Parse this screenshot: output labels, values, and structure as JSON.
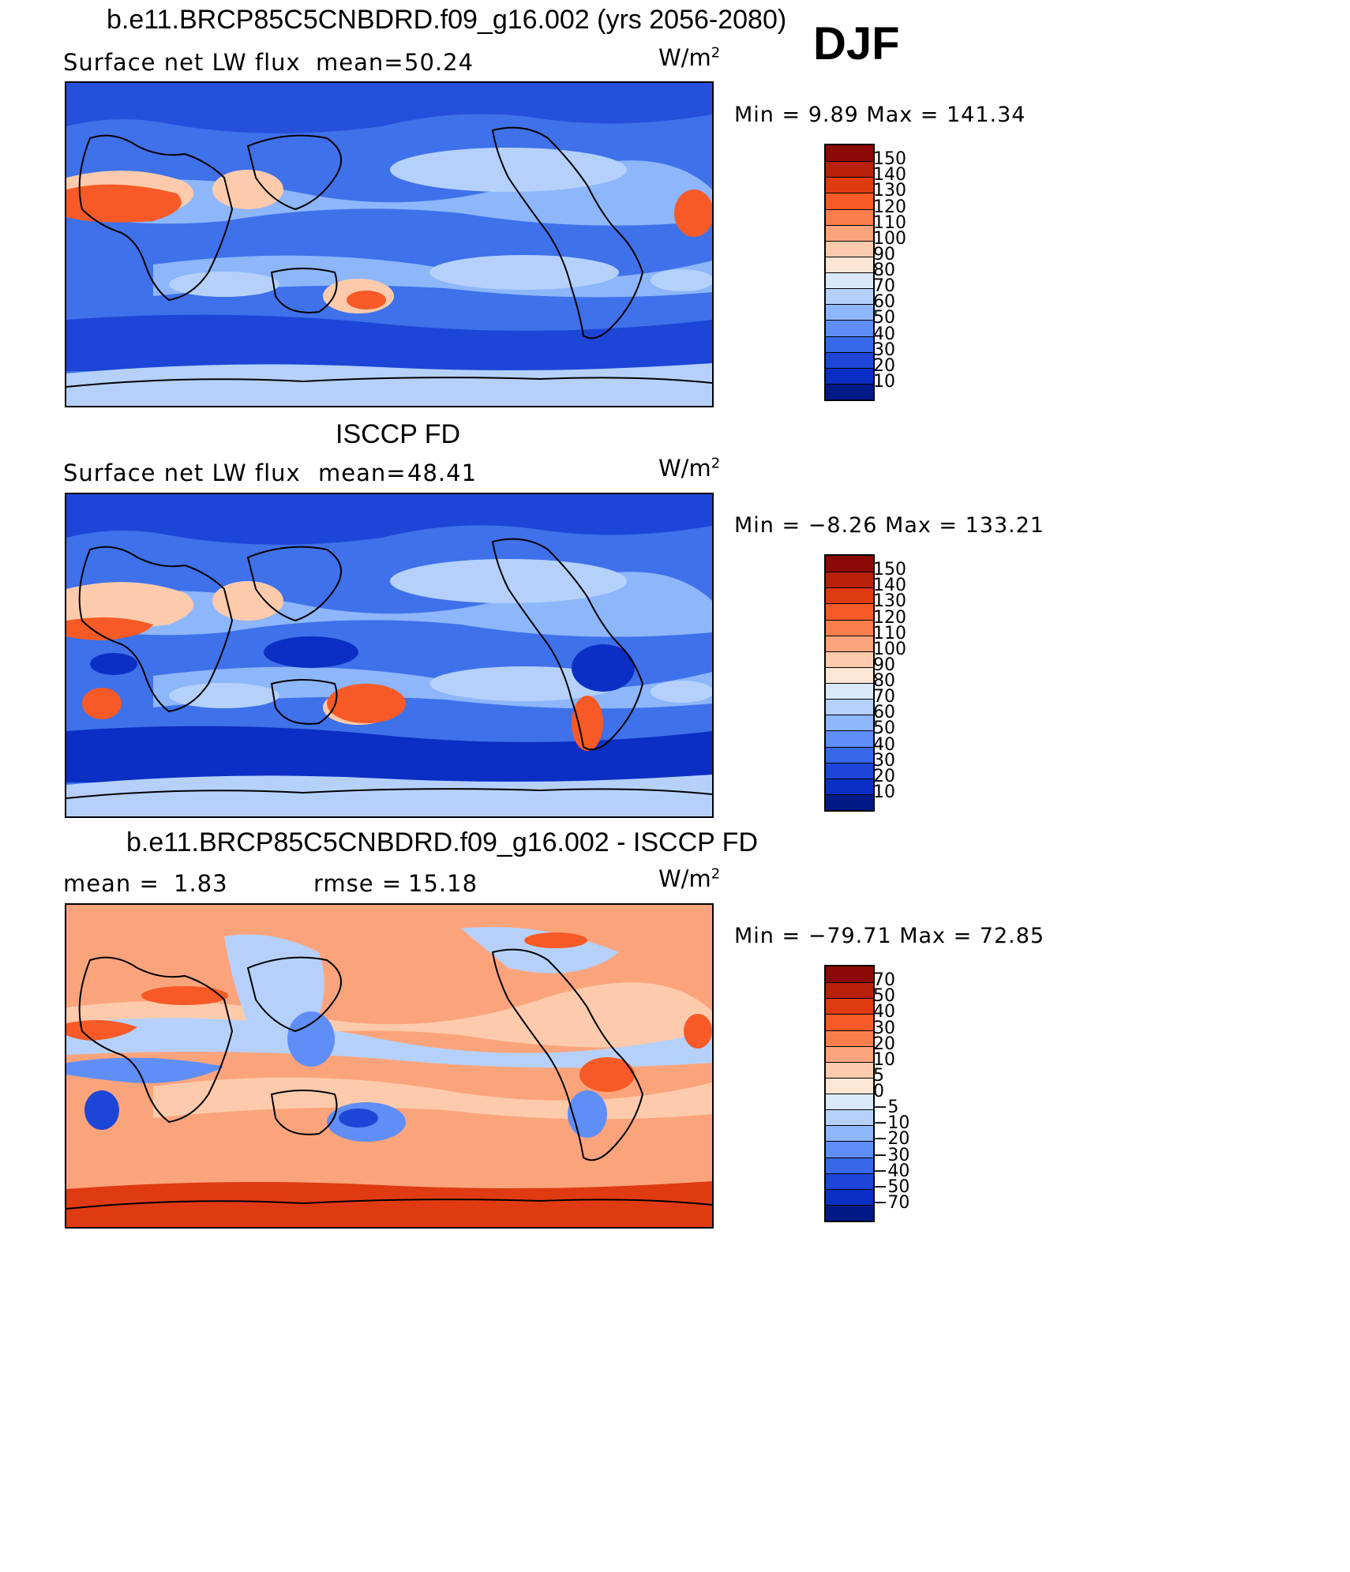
{
  "season": "DJF",
  "panels": [
    {
      "title": "b.e11.BRCP85C5CNBDRD.f09_g16.002 (yrs 2056-2080)",
      "left_label": "Surface net LW flux",
      "stat_label": "mean=",
      "stat_value": "50.24",
      "units": "W/m",
      "units_sup": "2",
      "minmax": "Min =    9.89  Max  =  141.34",
      "scheme": "warm",
      "colorbar": {
        "labels": [
          "150",
          "140",
          "130",
          "120",
          "110",
          "100",
          "90",
          "80",
          "70",
          "60",
          "50",
          "40",
          "30",
          "20",
          "10"
        ],
        "colors": [
          "#8b0a05",
          "#b8200a",
          "#e03a12",
          "#f75a27",
          "#fa7e4c",
          "#fba47c",
          "#fdcbac",
          "#fde6d4",
          "#d9e9fb",
          "#b5d1fb",
          "#8db6fb",
          "#5f8ef6",
          "#3768e9",
          "#1d46d8",
          "#0b2fc4",
          "#021a88"
        ]
      },
      "layers": [
        {
          "color": "#3f71ea",
          "shapes": "bg"
        },
        {
          "color": "#1d46d8",
          "shapes": "south_band"
        },
        {
          "color": "#8db6fb",
          "shapes": "subtrop"
        },
        {
          "color": "#b5d1fb",
          "shapes": "pacific_pale"
        },
        {
          "color": "#fdcbac",
          "shapes": "desert_light"
        },
        {
          "color": "#f75a27",
          "shapes": "desert"
        },
        {
          "color": "#2450dc",
          "shapes": "north_band"
        },
        {
          "color": "#b5d1fb",
          "shapes": "antarctic"
        }
      ]
    },
    {
      "title": "ISCCP FD",
      "left_label": "Surface net LW flux",
      "stat_label": "mean=",
      "stat_value": "48.41",
      "units": "W/m",
      "units_sup": "2",
      "minmax": "Min =   −8.26  Max  =  133.21",
      "scheme": "warm",
      "colorbar": {
        "labels": [
          "150",
          "140",
          "130",
          "120",
          "110",
          "100",
          "90",
          "80",
          "70",
          "60",
          "50",
          "40",
          "30",
          "20",
          "10"
        ],
        "colors": [
          "#8b0a05",
          "#b8200a",
          "#e03a12",
          "#f75a27",
          "#fa7e4c",
          "#fba47c",
          "#fdcbac",
          "#fde6d4",
          "#d9e9fb",
          "#b5d1fb",
          "#8db6fb",
          "#5f8ef6",
          "#3768e9",
          "#1d46d8",
          "#0b2fc4",
          "#021a88"
        ]
      },
      "layers": [
        {
          "color": "#3f71ea",
          "shapes": "bg"
        },
        {
          "color": "#0b2fc4",
          "shapes": "south_band"
        },
        {
          "color": "#8db6fb",
          "shapes": "subtrop"
        },
        {
          "color": "#b5d1fb",
          "shapes": "pacific_pale"
        },
        {
          "color": "#fdcbac",
          "shapes": "desert_light"
        },
        {
          "color": "#f75a27",
          "shapes": "desert2"
        },
        {
          "color": "#0b2fc4",
          "shapes": "tropic_dark"
        },
        {
          "color": "#1d46d8",
          "shapes": "north_band"
        },
        {
          "color": "#b5d1fb",
          "shapes": "antarctic"
        }
      ]
    },
    {
      "title": "b.e11.BRCP85C5CNBDRD.f09_g16.002 - ISCCP FD",
      "left_label": "mean =",
      "left_value": "1.83",
      "stat_label": "rmse =",
      "stat_value": "15.18",
      "units": "W/m",
      "units_sup": "2",
      "minmax": "Min = −79.71  Max  =   72.85",
      "scheme": "diff",
      "colorbar": {
        "labels": [
          "70",
          "50",
          "40",
          "30",
          "20",
          "10",
          "5",
          "0",
          "−5",
          "−10",
          "−20",
          "−30",
          "−40",
          "−50",
          "−70"
        ],
        "colors": [
          "#8b0a05",
          "#b8200a",
          "#e03a12",
          "#f75a27",
          "#fa7e4c",
          "#fba47c",
          "#fdcbac",
          "#fde6d4",
          "#d9e9fb",
          "#b5d1fb",
          "#8db6fb",
          "#5f8ef6",
          "#3768e9",
          "#1d46d8",
          "#0b2fc4",
          "#021a88"
        ]
      },
      "layers": [
        {
          "color": "#fba47c",
          "shapes": "bg"
        },
        {
          "color": "#fdcbac",
          "shapes": "subtrop"
        },
        {
          "color": "#b5d1fb",
          "shapes": "diff_blue_light"
        },
        {
          "color": "#5f8ef6",
          "shapes": "diff_blue"
        },
        {
          "color": "#1d46d8",
          "shapes": "diff_blue_dark"
        },
        {
          "color": "#f75a27",
          "shapes": "diff_red"
        },
        {
          "color": "#e03a12",
          "shapes": "antarctic_red"
        }
      ]
    }
  ]
}
